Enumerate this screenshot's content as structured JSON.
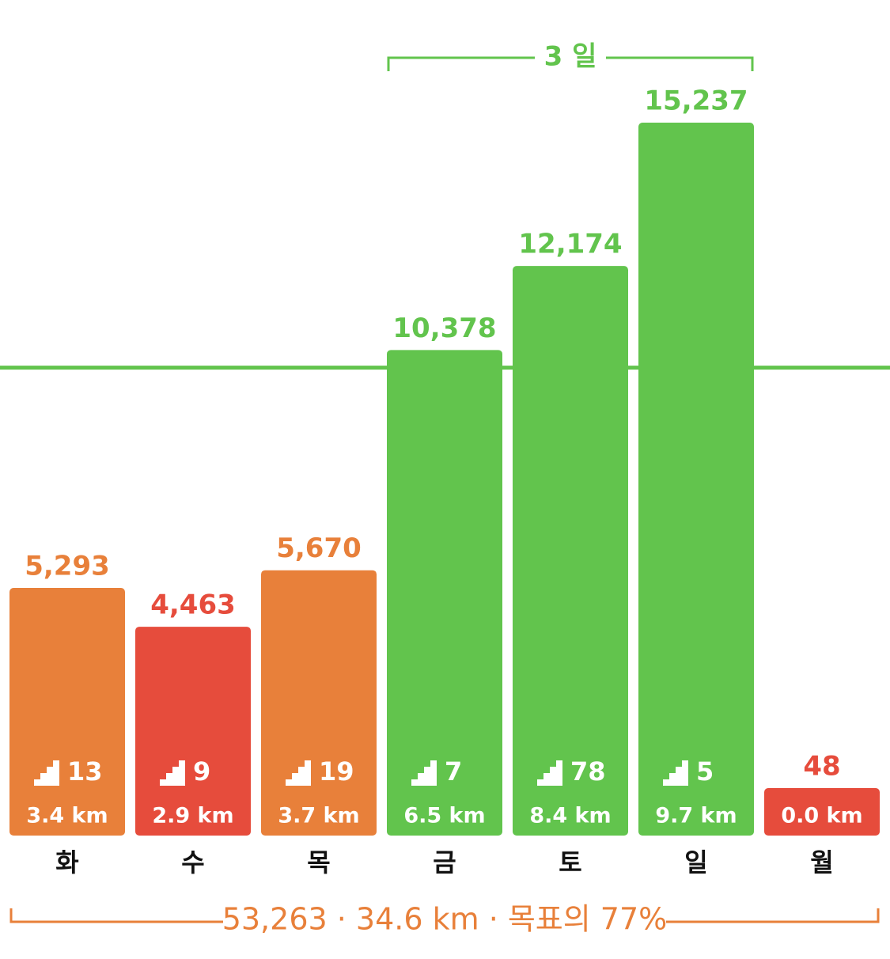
{
  "chart_data": {
    "type": "bar",
    "categories": [
      "화",
      "수",
      "목",
      "금",
      "토",
      "일",
      "월"
    ],
    "values": [
      5293,
      4463,
      5670,
      10378,
      12174,
      15237,
      48
    ],
    "value_labels": [
      "5,293",
      "4,463",
      "5,670",
      "10,378",
      "12,174",
      "15,237",
      "48"
    ],
    "colors": [
      "#e8803a",
      "#e64c3c",
      "#e8803a",
      "#62c44d",
      "#62c44d",
      "#62c44d",
      "#e64c3c"
    ],
    "floors": [
      13,
      9,
      19,
      7,
      78,
      5,
      null
    ],
    "distances": [
      "3.4 km",
      "2.9 km",
      "3.7 km",
      "6.5 km",
      "8.4 km",
      "9.7 km",
      "0.0 km"
    ],
    "goal": 10000,
    "goal_color": "#62c44d",
    "streak": {
      "label": "3 일",
      "from": 3,
      "to": 5,
      "color": "#62c44d"
    },
    "summary": {
      "label": "53,263 · 34.6 km · 목표의 77%",
      "color": "#e8803a"
    }
  }
}
